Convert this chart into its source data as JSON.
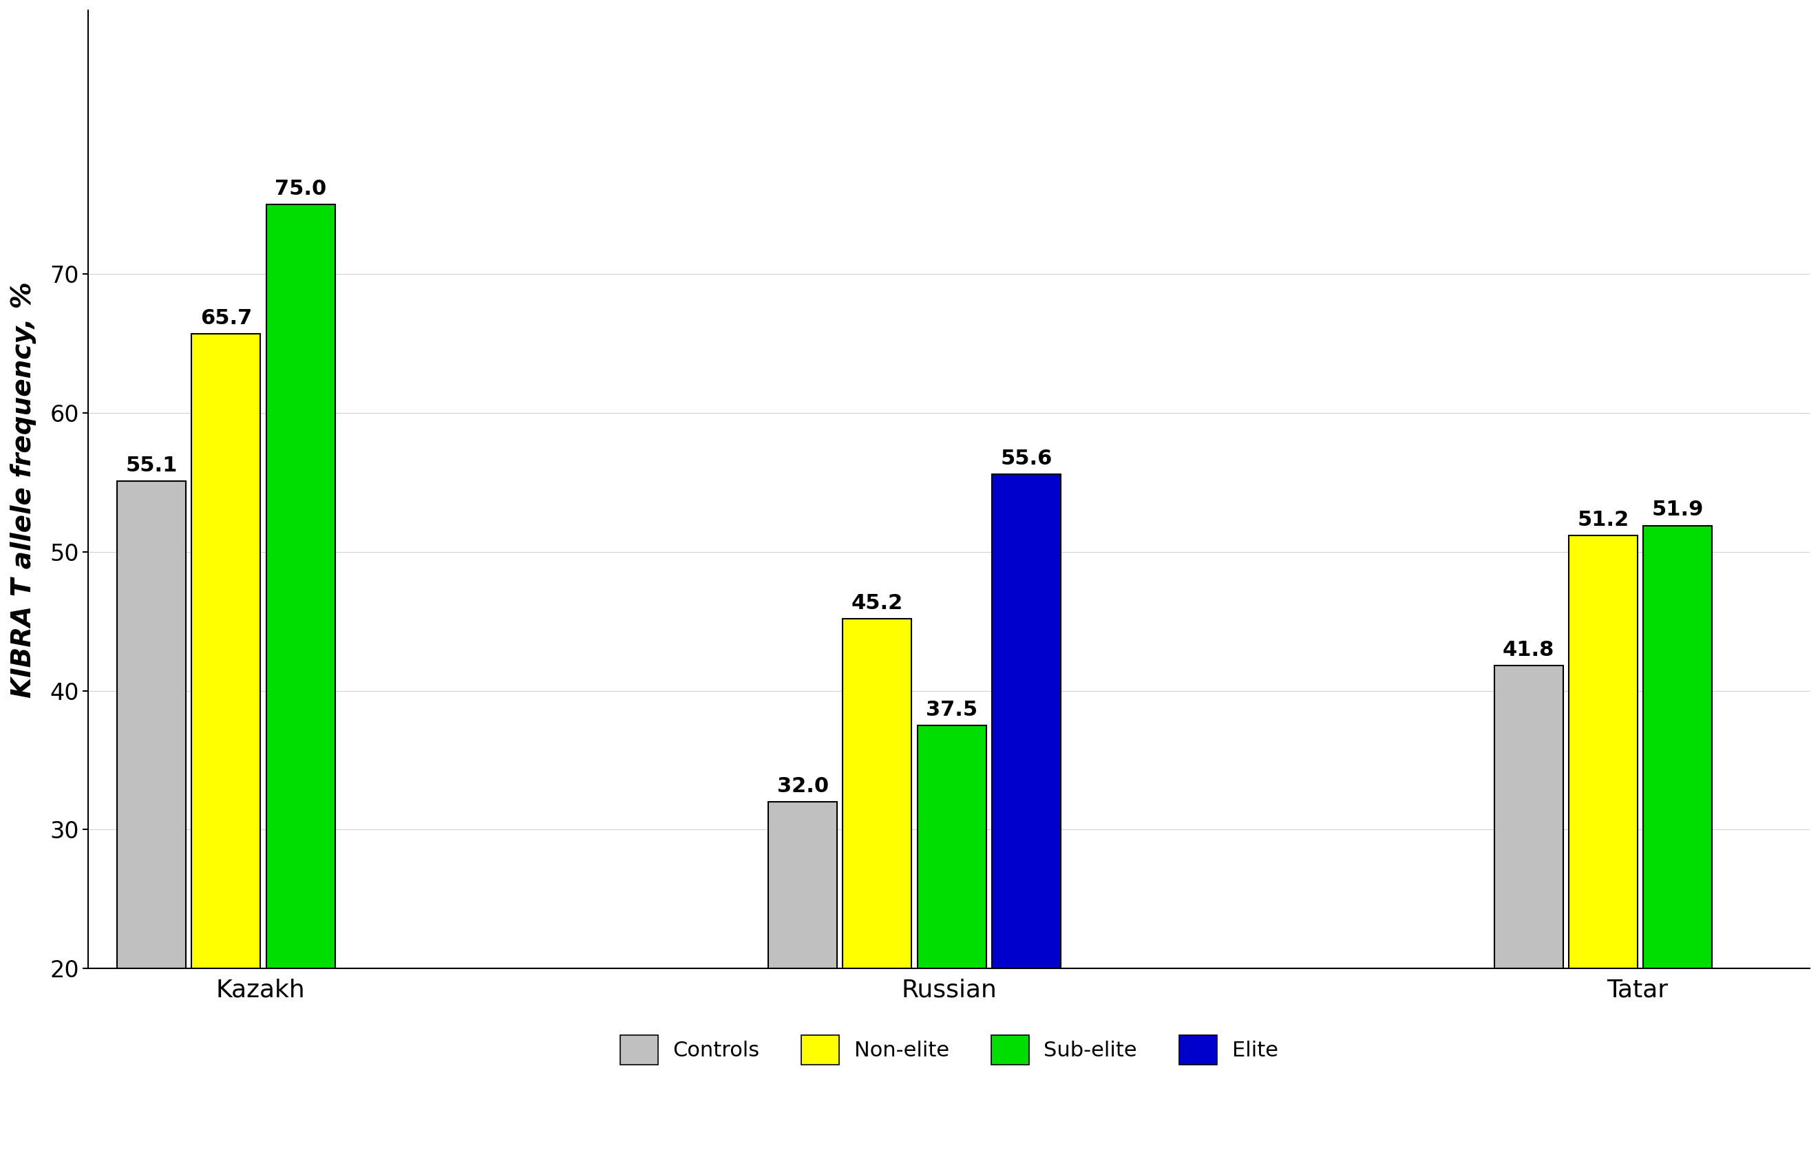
{
  "groups": [
    "Kazakh",
    "Russian",
    "Tatar"
  ],
  "categories": [
    "Controls",
    "Non-elite",
    "Sub-elite",
    "Elite"
  ],
  "values": {
    "Kazakh": [
      55.1,
      65.7,
      75.0,
      null
    ],
    "Russian": [
      32.0,
      45.2,
      37.5,
      55.6
    ],
    "Tatar": [
      41.8,
      51.2,
      51.9,
      null
    ]
  },
  "colors": {
    "Controls": "#c0c0c0",
    "Non-elite": "#ffff00",
    "Sub-elite": "#00dd00",
    "Elite": "#0000cc"
  },
  "ylabel": "KIBRA T allele frequency, %",
  "ylim": [
    20,
    80
  ],
  "yticks": [
    20,
    30,
    40,
    50,
    60,
    70
  ],
  "legend_labels": [
    "Controls",
    "Non-elite",
    "Sub-elite",
    "Elite"
  ],
  "legend_colors": [
    "#c0c0c0",
    "#ffff00",
    "#00dd00",
    "#0000cc"
  ],
  "annot_fontsize": 22,
  "legend_fontsize": 22,
  "ylabel_fontsize": 28,
  "tick_fontsize": 24,
  "group_label_fontsize": 26,
  "background_color": "#ffffff",
  "bar_width": 0.12,
  "bar_gap": 0.01,
  "group_centers": [
    0.5,
    1.7,
    2.9
  ]
}
